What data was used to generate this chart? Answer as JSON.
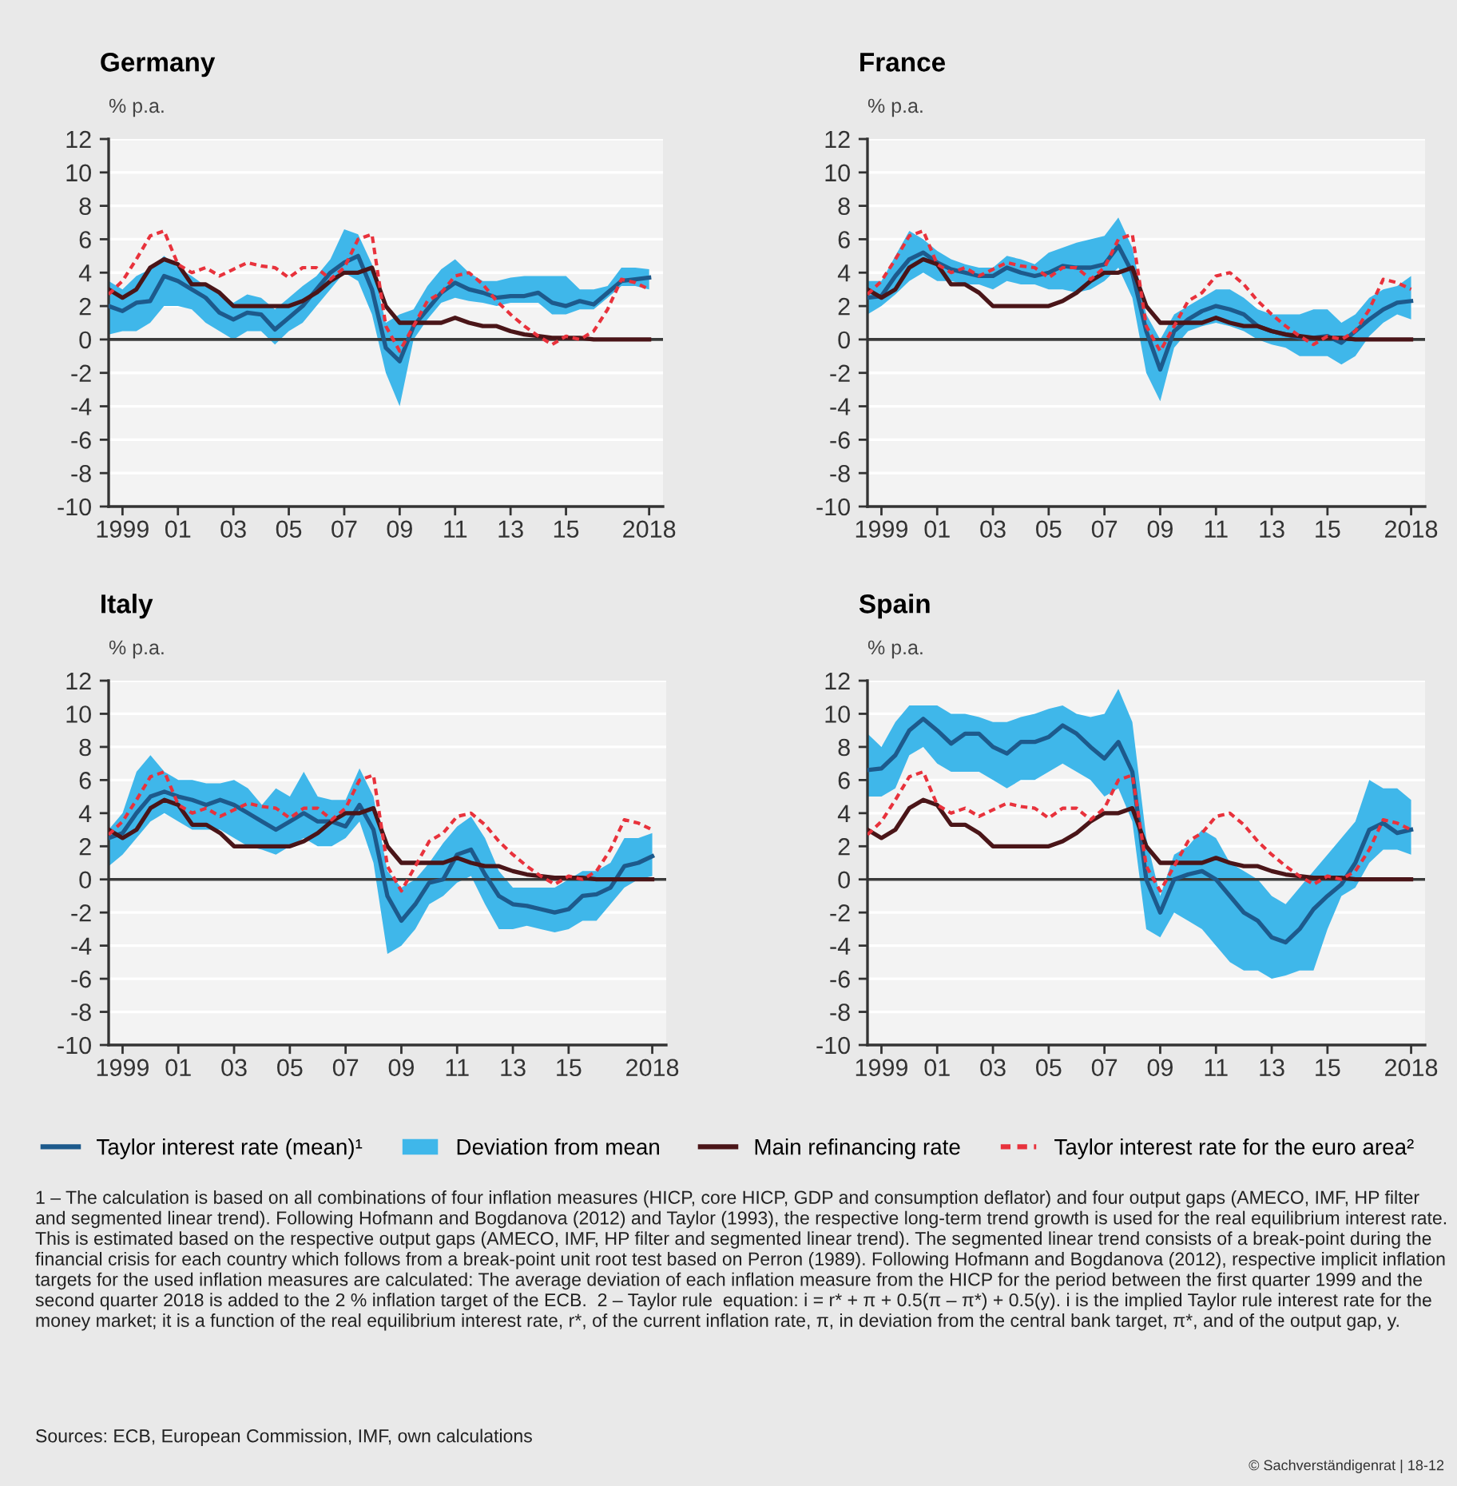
{
  "chart_data": [
    {
      "type": "line",
      "title": "Germany",
      "ylabel": "% p.a.",
      "xlim": [
        "1999-01",
        "2019-01"
      ],
      "xticks": [
        {
          "value": "1999-07",
          "label": "1999"
        },
        {
          "value": "2001-07",
          "label": "01"
        },
        {
          "value": "2003-07",
          "label": "03"
        },
        {
          "value": "2005-07",
          "label": "05"
        },
        {
          "value": "2007-07",
          "label": "07"
        },
        {
          "value": "2009-07",
          "label": "09"
        },
        {
          "value": "2011-07",
          "label": "11"
        },
        {
          "value": "2013-07",
          "label": "13"
        },
        {
          "value": "2015-07",
          "label": "15"
        },
        {
          "value": "2018-07",
          "label": "2018"
        }
      ],
      "ylim": [
        -10,
        12
      ],
      "yticks": [
        -10,
        -8,
        -6,
        -4,
        -2,
        0,
        2,
        4,
        6,
        8,
        10,
        12
      ],
      "grid": "y",
      "ref_lines": [
        {
          "axis": "y",
          "value": 0,
          "color": "#3a3a3a"
        }
      ],
      "x": [
        "1999-01",
        "1999-07",
        "2000-01",
        "2000-07",
        "2001-01",
        "2001-07",
        "2002-01",
        "2002-07",
        "2003-01",
        "2003-07",
        "2004-01",
        "2004-07",
        "2005-01",
        "2005-07",
        "2006-01",
        "2006-07",
        "2007-01",
        "2007-07",
        "2008-01",
        "2008-07",
        "2009-01",
        "2009-07",
        "2010-01",
        "2010-07",
        "2011-01",
        "2011-07",
        "2012-01",
        "2012-07",
        "2013-01",
        "2013-07",
        "2014-01",
        "2014-07",
        "2015-01",
        "2015-07",
        "2016-01",
        "2016-07",
        "2017-01",
        "2017-07",
        "2018-01",
        "2018-07"
      ],
      "series": [
        {
          "color": "#1d5a8c",
          "values": [
            2.0,
            1.7,
            2.2,
            2.3,
            3.8,
            3.5,
            3.0,
            2.5,
            1.6,
            1.2,
            1.6,
            1.5,
            0.6,
            1.3,
            2.0,
            3.0,
            4.0,
            4.6,
            5.0,
            3.0,
            -0.5,
            -1.3,
            0.8,
            1.8,
            2.8,
            3.4,
            3.0,
            2.8,
            2.5,
            2.6,
            2.6,
            2.8,
            2.2,
            2.0,
            2.3,
            2.1,
            2.8,
            3.5,
            3.6,
            3.7
          ]
        },
        {
          "type": "area",
          "color": "#3fb7ea",
          "values": [
            null,
            null,
            null,
            null,
            null,
            null,
            null,
            null,
            null,
            null,
            null,
            null,
            null,
            null,
            null,
            null,
            null,
            null,
            null,
            null,
            null,
            null,
            null,
            null,
            null,
            null,
            null,
            null,
            null,
            null,
            null,
            null,
            null,
            null,
            null,
            null,
            null,
            null,
            null,
            null
          ],
          "lower": [
            0.3,
            0.5,
            0.5,
            1.0,
            2.0,
            2.0,
            1.8,
            1.0,
            0.5,
            0.0,
            0.5,
            0.5,
            -0.3,
            0.5,
            1.0,
            2.0,
            3.0,
            4.0,
            3.5,
            1.5,
            -2.0,
            -4.0,
            0.0,
            1.2,
            2.2,
            2.5,
            2.3,
            2.2,
            2.0,
            2.2,
            2.2,
            2.2,
            1.5,
            1.5,
            1.8,
            1.8,
            2.5,
            3.2,
            3.2,
            3.0
          ],
          "upper": [
            3.5,
            3.0,
            3.8,
            4.2,
            5.0,
            4.3,
            3.8,
            3.2,
            2.8,
            2.2,
            2.7,
            2.5,
            1.8,
            2.5,
            3.2,
            3.8,
            4.8,
            6.6,
            6.3,
            4.5,
            1.0,
            1.5,
            1.8,
            3.2,
            4.2,
            4.8,
            4.0,
            3.5,
            3.5,
            3.7,
            3.8,
            3.8,
            3.8,
            3.8,
            3.0,
            3.0,
            3.2,
            4.3,
            4.3,
            4.2
          ]
        },
        {
          "color": "#4a1518",
          "values": [
            3.0,
            2.5,
            3.0,
            4.3,
            4.8,
            4.5,
            3.3,
            3.3,
            2.8,
            2.0,
            2.0,
            2.0,
            2.0,
            2.0,
            2.3,
            2.8,
            3.5,
            4.0,
            4.0,
            4.3,
            2.0,
            1.0,
            1.0,
            1.0,
            1.0,
            1.3,
            1.0,
            0.8,
            0.8,
            0.5,
            0.3,
            0.2,
            0.1,
            0.1,
            0.1,
            0.0,
            0.0,
            0.0,
            0.0,
            0.0
          ]
        },
        {
          "color": "#e8323c",
          "line_style": "dotted",
          "values": [
            2.7,
            3.5,
            4.8,
            6.2,
            6.5,
            4.5,
            4.0,
            4.3,
            3.8,
            4.2,
            4.6,
            4.4,
            4.3,
            3.7,
            4.3,
            4.3,
            3.6,
            4.3,
            6.0,
            6.3,
            0.8,
            -0.7,
            0.8,
            2.3,
            2.8,
            3.8,
            4.0,
            3.3,
            2.3,
            1.5,
            0.8,
            0.2,
            -0.3,
            0.2,
            0.0,
            0.5,
            1.8,
            3.6,
            3.4,
            3.0
          ]
        }
      ]
    },
    {
      "type": "line",
      "title": "France",
      "ylabel": "% p.a.",
      "xlim": [
        "1999-01",
        "2019-01"
      ],
      "xticks": [
        {
          "value": "1999-07",
          "label": "1999"
        },
        {
          "value": "2001-07",
          "label": "01"
        },
        {
          "value": "2003-07",
          "label": "03"
        },
        {
          "value": "2005-07",
          "label": "05"
        },
        {
          "value": "2007-07",
          "label": "07"
        },
        {
          "value": "2009-07",
          "label": "09"
        },
        {
          "value": "2011-07",
          "label": "11"
        },
        {
          "value": "2013-07",
          "label": "13"
        },
        {
          "value": "2015-07",
          "label": "15"
        },
        {
          "value": "2018-07",
          "label": "2018"
        }
      ],
      "ylim": [
        -10,
        12
      ],
      "yticks": [
        -10,
        -8,
        -6,
        -4,
        -2,
        0,
        2,
        4,
        6,
        8,
        10,
        12
      ],
      "grid": "y",
      "ref_lines": [
        {
          "axis": "y",
          "value": 0,
          "color": "#3a3a3a"
        }
      ],
      "x": [
        "1999-01",
        "1999-07",
        "2000-01",
        "2000-07",
        "2001-01",
        "2001-07",
        "2002-01",
        "2002-07",
        "2003-01",
        "2003-07",
        "2004-01",
        "2004-07",
        "2005-01",
        "2005-07",
        "2006-01",
        "2006-07",
        "2007-01",
        "2007-07",
        "2008-01",
        "2008-07",
        "2009-01",
        "2009-07",
        "2010-01",
        "2010-07",
        "2011-01",
        "2011-07",
        "2012-01",
        "2012-07",
        "2013-01",
        "2013-07",
        "2014-01",
        "2014-07",
        "2015-01",
        "2015-07",
        "2016-01",
        "2016-07",
        "2017-01",
        "2017-07",
        "2018-01",
        "2018-07"
      ],
      "series": [
        {
          "color": "#1d5a8c",
          "values": [
            2.5,
            2.6,
            3.8,
            4.8,
            5.2,
            4.6,
            4.2,
            4.0,
            3.8,
            3.8,
            4.3,
            4.0,
            3.8,
            4.0,
            4.4,
            4.3,
            4.3,
            4.5,
            5.6,
            4.0,
            0.5,
            -1.8,
            0.5,
            1.2,
            1.7,
            2.0,
            1.8,
            1.5,
            0.8,
            0.5,
            0.3,
            0.1,
            0.1,
            0.2,
            -0.2,
            0.5,
            1.2,
            1.8,
            2.2,
            2.3
          ]
        },
        {
          "type": "area",
          "color": "#3fb7ea",
          "values": [
            null,
            null,
            null,
            null,
            null,
            null,
            null,
            null,
            null,
            null,
            null,
            null,
            null,
            null,
            null,
            null,
            null,
            null,
            null,
            null,
            null,
            null,
            null,
            null,
            null,
            null,
            null,
            null,
            null,
            null,
            null,
            null,
            null,
            null,
            null,
            null,
            null,
            null,
            null,
            null
          ],
          "lower": [
            1.5,
            2.0,
            2.7,
            3.5,
            4.0,
            3.5,
            3.5,
            3.3,
            3.3,
            3.0,
            3.5,
            3.3,
            3.3,
            3.0,
            3.0,
            2.8,
            3.0,
            3.5,
            4.3,
            2.5,
            -2.0,
            -3.7,
            -0.5,
            0.5,
            0.8,
            1.0,
            0.8,
            0.5,
            0.0,
            -0.3,
            -0.5,
            -1.0,
            -1.0,
            -1.0,
            -1.5,
            -1.0,
            0.2,
            1.0,
            1.5,
            1.2
          ],
          "upper": [
            3.5,
            3.5,
            5.0,
            6.5,
            6.0,
            5.3,
            4.8,
            4.5,
            4.3,
            4.3,
            5.0,
            4.8,
            4.5,
            5.2,
            5.5,
            5.8,
            6.0,
            6.2,
            7.3,
            5.5,
            1.5,
            0.0,
            1.5,
            2.0,
            2.5,
            3.0,
            3.0,
            2.5,
            1.8,
            1.5,
            1.5,
            1.5,
            1.8,
            1.8,
            1.0,
            1.5,
            2.5,
            3.0,
            3.2,
            3.8
          ]
        },
        {
          "color": "#4a1518",
          "values": [
            3.0,
            2.5,
            3.0,
            4.3,
            4.8,
            4.5,
            3.3,
            3.3,
            2.8,
            2.0,
            2.0,
            2.0,
            2.0,
            2.0,
            2.3,
            2.8,
            3.5,
            4.0,
            4.0,
            4.3,
            2.0,
            1.0,
            1.0,
            1.0,
            1.0,
            1.3,
            1.0,
            0.8,
            0.8,
            0.5,
            0.3,
            0.2,
            0.1,
            0.1,
            0.1,
            0.0,
            0.0,
            0.0,
            0.0,
            0.0
          ]
        },
        {
          "color": "#e8323c",
          "line_style": "dotted",
          "values": [
            2.7,
            3.5,
            4.8,
            6.2,
            6.5,
            4.5,
            4.0,
            4.3,
            3.8,
            4.2,
            4.6,
            4.4,
            4.3,
            3.7,
            4.3,
            4.3,
            3.6,
            4.3,
            6.0,
            6.3,
            0.8,
            -0.7,
            0.8,
            2.3,
            2.8,
            3.8,
            4.0,
            3.3,
            2.3,
            1.5,
            0.8,
            0.2,
            -0.3,
            0.2,
            0.0,
            0.5,
            1.8,
            3.6,
            3.4,
            3.0
          ]
        }
      ]
    },
    {
      "type": "line",
      "title": "Italy",
      "ylabel": "% p.a.",
      "xlim": [
        "1999-01",
        "2019-01"
      ],
      "xticks": [
        {
          "value": "1999-07",
          "label": "1999"
        },
        {
          "value": "2001-07",
          "label": "01"
        },
        {
          "value": "2003-07",
          "label": "03"
        },
        {
          "value": "2005-07",
          "label": "05"
        },
        {
          "value": "2007-07",
          "label": "07"
        },
        {
          "value": "2009-07",
          "label": "09"
        },
        {
          "value": "2011-07",
          "label": "11"
        },
        {
          "value": "2013-07",
          "label": "13"
        },
        {
          "value": "2015-07",
          "label": "15"
        },
        {
          "value": "2018-07",
          "label": "2018"
        }
      ],
      "ylim": [
        -10,
        12
      ],
      "yticks": [
        -10,
        -8,
        -6,
        -4,
        -2,
        0,
        2,
        4,
        6,
        8,
        10,
        12
      ],
      "grid": "y",
      "ref_lines": [
        {
          "axis": "y",
          "value": 0,
          "color": "#3a3a3a"
        }
      ],
      "x": [
        "1999-01",
        "1999-07",
        "2000-01",
        "2000-07",
        "2001-01",
        "2001-07",
        "2002-01",
        "2002-07",
        "2003-01",
        "2003-07",
        "2004-01",
        "2004-07",
        "2005-01",
        "2005-07",
        "2006-01",
        "2006-07",
        "2007-01",
        "2007-07",
        "2008-01",
        "2008-07",
        "2009-01",
        "2009-07",
        "2010-01",
        "2010-07",
        "2011-01",
        "2011-07",
        "2012-01",
        "2012-07",
        "2013-01",
        "2013-07",
        "2014-01",
        "2014-07",
        "2015-01",
        "2015-07",
        "2016-01",
        "2016-07",
        "2017-01",
        "2017-07",
        "2018-01",
        "2018-07"
      ],
      "series": [
        {
          "color": "#1d5a8c",
          "values": [
            2.5,
            2.8,
            4.0,
            5.0,
            5.3,
            5.0,
            4.8,
            4.5,
            4.8,
            4.5,
            4.0,
            3.5,
            3.0,
            3.5,
            4.0,
            3.5,
            3.5,
            3.2,
            4.5,
            3.0,
            -1.0,
            -2.5,
            -1.5,
            -0.2,
            0.0,
            1.5,
            1.8,
            0.3,
            -1.0,
            -1.5,
            -1.6,
            -1.8,
            -2.0,
            -1.8,
            -1.0,
            -0.9,
            -0.5,
            0.8,
            1.0,
            1.4
          ]
        },
        {
          "type": "area",
          "color": "#3fb7ea",
          "values": [
            null,
            null,
            null,
            null,
            null,
            null,
            null,
            null,
            null,
            null,
            null,
            null,
            null,
            null,
            null,
            null,
            null,
            null,
            null,
            null,
            null,
            null,
            null,
            null,
            null,
            null,
            null,
            null,
            null,
            null,
            null,
            null,
            null,
            null,
            null,
            null,
            null,
            null,
            null,
            null
          ],
          "lower": [
            0.8,
            1.5,
            2.5,
            3.5,
            4.0,
            3.5,
            3.0,
            3.0,
            3.0,
            2.5,
            2.0,
            1.8,
            1.5,
            2.0,
            2.5,
            2.0,
            2.0,
            2.5,
            3.5,
            1.0,
            -4.5,
            -4.0,
            -3.0,
            -1.5,
            -1.0,
            -0.2,
            0.2,
            -1.5,
            -3.0,
            -3.0,
            -2.8,
            -3.0,
            -3.2,
            -3.0,
            -2.5,
            -2.5,
            -1.5,
            -0.5,
            0.0,
            0.2
          ],
          "upper": [
            3.0,
            4.0,
            6.5,
            7.5,
            6.5,
            6.0,
            6.0,
            5.8,
            5.8,
            6.0,
            5.5,
            4.5,
            5.5,
            5.0,
            6.5,
            5.0,
            4.8,
            4.8,
            6.7,
            5.0,
            0.5,
            -0.5,
            0.0,
            1.0,
            2.2,
            3.2,
            3.8,
            2.5,
            0.5,
            -0.5,
            -0.5,
            -0.5,
            -0.5,
            0.0,
            0.5,
            0.5,
            1.0,
            2.5,
            2.5,
            2.8
          ]
        },
        {
          "color": "#4a1518",
          "values": [
            3.0,
            2.5,
            3.0,
            4.3,
            4.8,
            4.5,
            3.3,
            3.3,
            2.8,
            2.0,
            2.0,
            2.0,
            2.0,
            2.0,
            2.3,
            2.8,
            3.5,
            4.0,
            4.0,
            4.3,
            2.0,
            1.0,
            1.0,
            1.0,
            1.0,
            1.3,
            1.0,
            0.8,
            0.8,
            0.5,
            0.3,
            0.2,
            0.1,
            0.1,
            0.1,
            0.0,
            0.0,
            0.0,
            0.0,
            0.0
          ]
        },
        {
          "color": "#e8323c",
          "line_style": "dotted",
          "values": [
            2.7,
            3.5,
            4.8,
            6.2,
            6.5,
            4.5,
            4.0,
            4.3,
            3.8,
            4.2,
            4.6,
            4.4,
            4.3,
            3.7,
            4.3,
            4.3,
            3.6,
            4.3,
            6.0,
            6.3,
            0.8,
            -0.7,
            0.8,
            2.3,
            2.8,
            3.8,
            4.0,
            3.3,
            2.3,
            1.5,
            0.8,
            0.2,
            -0.3,
            0.2,
            0.0,
            0.5,
            1.8,
            3.6,
            3.4,
            3.0
          ]
        }
      ]
    },
    {
      "type": "line",
      "title": "Spain",
      "ylabel": "% p.a.",
      "xlim": [
        "1999-01",
        "2019-01"
      ],
      "xticks": [
        {
          "value": "1999-07",
          "label": "1999"
        },
        {
          "value": "2001-07",
          "label": "01"
        },
        {
          "value": "2003-07",
          "label": "03"
        },
        {
          "value": "2005-07",
          "label": "05"
        },
        {
          "value": "2007-07",
          "label": "07"
        },
        {
          "value": "2009-07",
          "label": "09"
        },
        {
          "value": "2011-07",
          "label": "11"
        },
        {
          "value": "2013-07",
          "label": "13"
        },
        {
          "value": "2015-07",
          "label": "15"
        },
        {
          "value": "2018-07",
          "label": "2018"
        }
      ],
      "ylim": [
        -10,
        12
      ],
      "yticks": [
        -10,
        -8,
        -6,
        -4,
        -2,
        0,
        2,
        4,
        6,
        8,
        10,
        12
      ],
      "grid": "y",
      "ref_lines": [
        {
          "axis": "y",
          "value": 0,
          "color": "#3a3a3a"
        }
      ],
      "legend": "bottom",
      "annotations": [
        "1 – The calculation is based on all combinations of four inflation measures (HICP, core HICP, GDP and consumption deflator) and four output gaps (AMECO, IMF, HP filter and segmented linear trend). Following Hofmann and Bogdanova (2012) and Taylor (1993), the respective long-term trend growth is used for the real equilibrium interest rate. This is estimated based on the respective output gaps (AMECO, IMF, HP filter and segmented linear trend). The segmented linear trend consists of a break-point during the financial crisis for each country which follows from a break-point unit root test based on Perron (1989). Following Hofmann and Bogdanova (2012), respective implicit inflation targets for the used inflation measures are calculated: The average deviation of each inflation measure from the HICP for the period between the first quarter 1999 and the second quarter 2018 is added to the 2 % inflation target of the ECB.  2 – Taylor rule  equation: i = r* + π + 0.5(π – π*) + 0.5(y). i is the implied Taylor rule interest rate for the money market; it is a function of the real equilibrium interest rate, r*, of the current inflation rate, π, in deviation from the central bank target, π*, and of the output gap, y.",
        "Sources: ECB, European Commission, IMF, own calculations",
        "© Sachverständigenrat | 18-12"
      ],
      "x": [
        "1999-01",
        "1999-07",
        "2000-01",
        "2000-07",
        "2001-01",
        "2001-07",
        "2002-01",
        "2002-07",
        "2003-01",
        "2003-07",
        "2004-01",
        "2004-07",
        "2005-01",
        "2005-07",
        "2006-01",
        "2006-07",
        "2007-01",
        "2007-07",
        "2008-01",
        "2008-07",
        "2009-01",
        "2009-07",
        "2010-01",
        "2010-07",
        "2011-01",
        "2011-07",
        "2012-01",
        "2012-07",
        "2013-01",
        "2013-07",
        "2014-01",
        "2014-07",
        "2015-01",
        "2015-07",
        "2016-01",
        "2016-07",
        "2017-01",
        "2017-07",
        "2018-01",
        "2018-07"
      ],
      "series": [
        {
          "name": "Taylor interest rate (mean)¹",
          "color": "#1d5a8c",
          "values": [
            6.6,
            6.7,
            7.5,
            9.0,
            9.7,
            9.0,
            8.2,
            8.8,
            8.8,
            8.0,
            7.6,
            8.3,
            8.3,
            8.6,
            9.3,
            8.8,
            8.0,
            7.3,
            8.3,
            6.5,
            0.0,
            -2.0,
            0.0,
            0.3,
            0.5,
            0.0,
            -1.0,
            -2.0,
            -2.5,
            -3.5,
            -3.8,
            -3.0,
            -1.8,
            -1.0,
            -0.3,
            1.0,
            3.0,
            3.4,
            2.8,
            3.0
          ]
        },
        {
          "name": "Deviation from mean",
          "type": "area",
          "color": "#3fb7ea",
          "values": [
            null,
            null,
            null,
            null,
            null,
            null,
            null,
            null,
            null,
            null,
            null,
            null,
            null,
            null,
            null,
            null,
            null,
            null,
            null,
            null,
            null,
            null,
            null,
            null,
            null,
            null,
            null,
            null,
            null,
            null,
            null,
            null,
            null,
            null,
            null,
            null,
            null,
            null,
            null,
            null
          ],
          "lower": [
            5.0,
            5.0,
            5.5,
            7.5,
            8.0,
            7.0,
            6.5,
            6.5,
            6.5,
            6.0,
            5.5,
            6.0,
            6.0,
            6.5,
            7.0,
            6.5,
            6.0,
            5.0,
            5.5,
            3.5,
            -3.0,
            -3.5,
            -2.0,
            -2.5,
            -3.0,
            -4.0,
            -5.0,
            -5.5,
            -5.5,
            -6.0,
            -5.8,
            -5.5,
            -5.5,
            -3.0,
            -1.0,
            -0.5,
            1.0,
            1.8,
            1.8,
            1.5
          ],
          "upper": [
            8.8,
            8.0,
            9.5,
            10.5,
            10.5,
            10.5,
            10.0,
            10.0,
            9.8,
            9.5,
            9.5,
            9.8,
            10.0,
            10.3,
            10.5,
            10.0,
            9.8,
            10.0,
            11.5,
            9.5,
            2.5,
            -1.0,
            1.5,
            2.0,
            3.0,
            2.5,
            1.0,
            0.5,
            0.0,
            -1.0,
            -1.5,
            -0.5,
            0.5,
            1.5,
            2.5,
            3.5,
            6.0,
            5.5,
            5.5,
            4.8
          ]
        },
        {
          "name": "Main refinancing rate",
          "color": "#4a1518",
          "values": [
            3.0,
            2.5,
            3.0,
            4.3,
            4.8,
            4.5,
            3.3,
            3.3,
            2.8,
            2.0,
            2.0,
            2.0,
            2.0,
            2.0,
            2.3,
            2.8,
            3.5,
            4.0,
            4.0,
            4.3,
            2.0,
            1.0,
            1.0,
            1.0,
            1.0,
            1.3,
            1.0,
            0.8,
            0.8,
            0.5,
            0.3,
            0.2,
            0.1,
            0.1,
            0.1,
            0.0,
            0.0,
            0.0,
            0.0,
            0.0
          ]
        },
        {
          "name": "Taylor interest rate for the euro area²",
          "color": "#e8323c",
          "line_style": "dotted",
          "values": [
            2.7,
            3.5,
            4.8,
            6.2,
            6.5,
            4.5,
            4.0,
            4.3,
            3.8,
            4.2,
            4.6,
            4.4,
            4.3,
            3.7,
            4.3,
            4.3,
            3.6,
            4.3,
            6.0,
            6.3,
            0.8,
            -0.7,
            0.8,
            2.3,
            2.8,
            3.8,
            4.0,
            3.3,
            2.3,
            1.5,
            0.8,
            0.2,
            -0.3,
            0.2,
            0.0,
            0.5,
            1.8,
            3.6,
            3.4,
            3.0
          ]
        }
      ]
    }
  ]
}
